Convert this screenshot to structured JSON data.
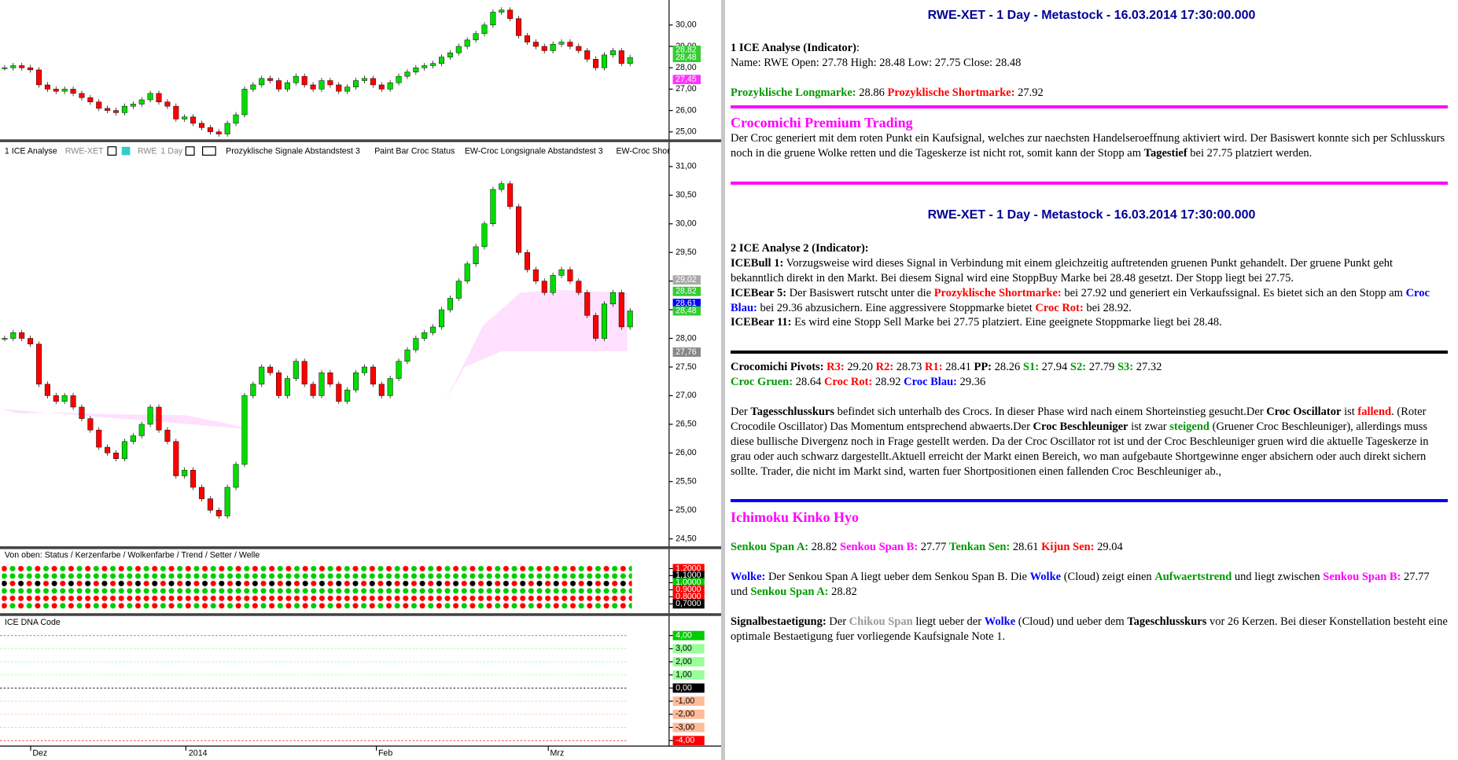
{
  "left": {
    "top_chart": {
      "ylim": [
        24.65,
        31.17
      ],
      "yticks": [
        {
          "value": 30,
          "label": "30,00"
        },
        {
          "value": 29,
          "label": "29,00"
        },
        {
          "value": 28,
          "label": "28,00"
        },
        {
          "value": 27,
          "label": "27,00"
        },
        {
          "value": 26,
          "label": "26,00"
        },
        {
          "value": 25,
          "label": "25,00"
        }
      ],
      "price_tags": [
        {
          "value": 28.82,
          "label": "28,82",
          "color": "#33cc33"
        },
        {
          "value": 28.48,
          "label": "28,48",
          "color": "#33cc33"
        },
        {
          "value": 27.45,
          "label": "27,45",
          "color": "#ff33ff"
        }
      ]
    },
    "header_bar": [
      "1 ICE Analyse",
      "RWE-XET",
      "RWE",
      "1 Day",
      "Prozyklische Signale Abstandstest 3",
      "Paint Bar Croc Status",
      "EW-Croc Longsignale Abstandstest 3",
      "EW-Croc Shor"
    ],
    "main_chart": {
      "ylim": [
        24.37,
        31.15
      ],
      "yticks": [
        {
          "value": 31,
          "label": "31,00"
        },
        {
          "value": 30.5,
          "label": "30,50"
        },
        {
          "value": 30,
          "label": "30,00"
        },
        {
          "value": 29.5,
          "label": "29,50"
        },
        {
          "value": 29,
          "label": "29,00"
        },
        {
          "value": 28.5,
          "label": "28,50"
        },
        {
          "value": 28,
          "label": "28,00"
        },
        {
          "value": 27.5,
          "label": "27,50"
        },
        {
          "value": 27,
          "label": "27,00"
        },
        {
          "value": 26.5,
          "label": "26,50"
        },
        {
          "value": 26,
          "label": "26,00"
        },
        {
          "value": 25.5,
          "label": "25,50"
        },
        {
          "value": 25,
          "label": "25,00"
        },
        {
          "value": 24.5,
          "label": "24,50"
        }
      ],
      "price_tags": [
        {
          "value": 29.02,
          "label": "29,02",
          "color": "#aaaaaa"
        },
        {
          "value": 28.82,
          "label": "28,82",
          "color": "#33cc33"
        },
        {
          "value": 28.61,
          "label": "28,61",
          "color": "#0000ff"
        },
        {
          "value": 28.48,
          "label": "28,48",
          "color": "#33cc33"
        },
        {
          "value": 27.76,
          "label": "27,76",
          "color": "#888888"
        }
      ],
      "closes": [
        28.0,
        28.1,
        28.0,
        27.9,
        27.2,
        27.0,
        26.9,
        27.0,
        26.8,
        26.6,
        26.4,
        26.1,
        26.0,
        25.9,
        26.2,
        26.3,
        26.5,
        26.8,
        26.4,
        26.2,
        25.6,
        25.7,
        25.4,
        25.2,
        25.0,
        24.9,
        25.4,
        25.8,
        27.0,
        27.2,
        27.5,
        27.4,
        27.0,
        27.3,
        27.6,
        27.2,
        27.0,
        27.4,
        27.2,
        26.9,
        27.1,
        27.4,
        27.5,
        27.2,
        27.0,
        27.3,
        27.6,
        27.8,
        28.0,
        28.1,
        28.2,
        28.5,
        28.7,
        29.0,
        29.3,
        29.6,
        30.0,
        30.6,
        30.7,
        30.3,
        29.5,
        29.2,
        29.0,
        28.8,
        29.1,
        29.2,
        29.0,
        28.8,
        28.4,
        28.0,
        28.6,
        28.8,
        28.2,
        28.48
      ]
    },
    "status_panel": {
      "title": "Von oben: Status / Kerzenfarbe / Wolkenfarbe / Trend / Setter / Welle",
      "ylim": [
        0.568,
        1.463
      ],
      "ticks": [
        {
          "value": 1.2,
          "label": "1,2000"
        },
        {
          "value": 1.1,
          "label": "1,1000"
        },
        {
          "value": 1.0,
          "label": "1,0000"
        },
        {
          "value": 0.9,
          "label": "0,9000"
        },
        {
          "value": 0.8,
          "label": "0,8000"
        },
        {
          "value": 0.7,
          "label": "0,7000"
        }
      ],
      "tick_colors": [
        "#ff0000",
        "#000000",
        "#00cc00",
        "#ff0000",
        "#ff0000",
        "#000000"
      ]
    },
    "dna_panel": {
      "title": "ICE DNA Code",
      "ylim": [
        -4.42,
        5.49
      ],
      "ticks": [
        {
          "value": 4,
          "label": "4,00"
        },
        {
          "value": 3,
          "label": "3,00"
        },
        {
          "value": 2,
          "label": "2,00"
        },
        {
          "value": 1,
          "label": "1,00"
        },
        {
          "value": 0,
          "label": "0,00"
        },
        {
          "value": -1,
          "label": "-1,00"
        },
        {
          "value": -2,
          "label": "-2,00"
        },
        {
          "value": -3,
          "label": "-3,00"
        },
        {
          "value": -4,
          "label": "-4,00"
        }
      ],
      "tick_colors": [
        "#00cc00",
        "#99ff99",
        "#99ff99",
        "#99ff99",
        "#000000",
        "#ffbb99",
        "#ffbb99",
        "#ffbb99",
        "#ff0000"
      ]
    },
    "x_labels": [
      "Dez",
      "2014",
      "Feb",
      "Mrz"
    ]
  },
  "report": {
    "headers": [
      "RWE-XET - 1 Day - Metastock - 16.03.2014 17:30:00.000",
      "RWE-XET - 1 Day - Metastock - 16.03.2014 17:30:00.000"
    ],
    "paragraphs": [
      [
        {
          "text": "1 ICE Analyse (Indicator)",
          "style": "b"
        },
        ":"
      ],
      [
        "Name: RWE Open: 27.78 High: 28.48 Low: 27.75 Close: 28.48"
      ],
      [
        {
          "text": "Prozyklische Longmarke:",
          "style": "g"
        },
        " 28.86 ",
        {
          "text": "Prozyklische Shortmarke:",
          "style": "r"
        },
        " 27.92"
      ],
      [
        {
          "text": "Crocomichi Premium Trading",
          "style": "mh"
        }
      ],
      [
        "Der Croc generiert mit dem roten Punkt ein Kaufsignal, welches zur naechsten Handelseroeffnung aktiviert wird. Der Basiswert konnte sich per Schlusskurs noch in die gruene Wolke retten und die Tageskerze ist nicht rot, somit kann der Stopp am ",
        {
          "text": "Tagestief",
          "style": "b"
        },
        " bei 27.75 platziert werden."
      ],
      [
        {
          "text": "2 ICE Analyse 2 (Indicator):",
          "style": "b"
        }
      ],
      [
        {
          "text": "ICEBull 1:",
          "style": "b"
        },
        " Vorzugsweise wird dieses Signal in Verbindung mit einem gleichzeitig auftretenden gruenen Punkt gehandelt. Der gruene Punkt geht bekanntlich direkt in den Markt. Bei diesem Signal wird eine StoppBuy Marke bei 28.48 gesetzt. Der Stopp liegt bei 27.75."
      ],
      [
        {
          "text": "ICEBear 5:",
          "style": "b"
        },
        " Der Basiswert rutscht unter die ",
        {
          "text": "Prozyklische Shortmarke:",
          "style": "r"
        },
        " bei 27.92 und generiert ein Verkaufssignal. Es bietet sich an den Stopp am ",
        {
          "text": "Croc Blau:",
          "style": "bl"
        },
        " bei 29.36 abzusichern. Eine aggressivere Stoppmarke bietet ",
        {
          "text": "Croc Rot:",
          "style": "r"
        },
        " bei 28.92."
      ],
      [
        {
          "text": "ICEBear 11:",
          "style": "b"
        },
        " Es wird eine Stopp Sell Marke bei 27.75 platziert. Eine geeignete Stoppmarke liegt bei 28.48."
      ],
      [
        {
          "text": "Crocomichi Pivots:",
          "style": "b"
        },
        " ",
        {
          "text": "R3:",
          "style": "r"
        },
        " 29.20 ",
        {
          "text": "R2:",
          "style": "r"
        },
        " 28.73 ",
        {
          "text": "R1:",
          "style": "r"
        },
        " 28.41 ",
        {
          "text": "PP:",
          "style": "b"
        },
        " 28.26 ",
        {
          "text": "S1:",
          "style": "g"
        },
        " 27.94 ",
        {
          "text": "S2:",
          "style": "g"
        },
        " 27.79 ",
        {
          "text": "S3:",
          "style": "g"
        },
        " 27.32"
      ],
      [
        {
          "text": "Croc Gruen:",
          "style": "g"
        },
        " 28.64 ",
        {
          "text": "Croc Rot:",
          "style": "r"
        },
        " 28.92 ",
        {
          "text": "Croc Blau:",
          "style": "bl"
        },
        " 29.36"
      ],
      [
        "Der ",
        {
          "text": "Tagesschlusskurs",
          "style": "b"
        },
        " befindet sich unterhalb des Crocs. In dieser Phase wird nach einem Shorteinstieg gesucht.Der ",
        {
          "text": "Croc Oscillator",
          "style": "b"
        },
        " ist ",
        {
          "text": "fallend",
          "style": "r"
        },
        ". (Roter Crocodile Oscillator) Das Momentum entsprechend abwaerts.Der ",
        {
          "text": "Croc Beschleuniger",
          "style": "b"
        },
        " ist zwar ",
        {
          "text": "steigend",
          "style": "g"
        },
        " (Gruener Croc Beschleuniger), allerdings muss diese bullische Divergenz noch in Frage gestellt werden. Da der Croc Oscillator rot ist und der Croc Beschleuniger gruen wird die aktuelle Tageskerze in grau oder auch schwarz dargestellt.Aktuell erreicht der Markt einen Bereich, wo man aufgebaute Shortgewinne enger absichern oder auch direkt sichern sollte. Trader, die nicht im Markt sind, warten fuer Shortpositionen einen fallenden Croc Beschleuniger ab.,"
      ],
      [
        {
          "text": "Ichimoku Kinko Hyo",
          "style": "mh"
        }
      ],
      [
        {
          "text": "Senkou Span A:",
          "style": "g"
        },
        " 28.82 ",
        {
          "text": "Senkou Span B:",
          "style": "m"
        },
        " 27.77 ",
        {
          "text": "Tenkan Sen:",
          "style": "g"
        },
        " 28.61 ",
        {
          "text": "Kijun Sen:",
          "style": "r"
        },
        " 29.04"
      ],
      [
        {
          "text": "Wolke:",
          "style": "bl"
        },
        " Der Senkou Span A liegt ueber dem Senkou Span B. Die ",
        {
          "text": "Wolke",
          "style": "bl"
        },
        " (Cloud) zeigt einen ",
        {
          "text": "Aufwaertstrend",
          "style": "g"
        },
        " und liegt zwischen ",
        {
          "text": "Senkou Span B:",
          "style": "m"
        },
        " 27.77 und ",
        {
          "text": "Senkou Span A:",
          "style": "g"
        },
        " 28.82"
      ],
      [
        {
          "text": "Signalbestaetigung:",
          "style": "b"
        },
        " Der ",
        {
          "text": "Chikou Span",
          "style": "gr"
        },
        " liegt ueber der ",
        {
          "text": "Wolke",
          "style": "bl"
        },
        " (Cloud) und ueber dem ",
        {
          "text": "Tageschlusskurs",
          "style": "b"
        },
        " vor 26 Kerzen. Bei dieser Konstellation besteht eine optimale Bestaetigung fuer vorliegende Kaufsignale Note 1."
      ]
    ]
  }
}
